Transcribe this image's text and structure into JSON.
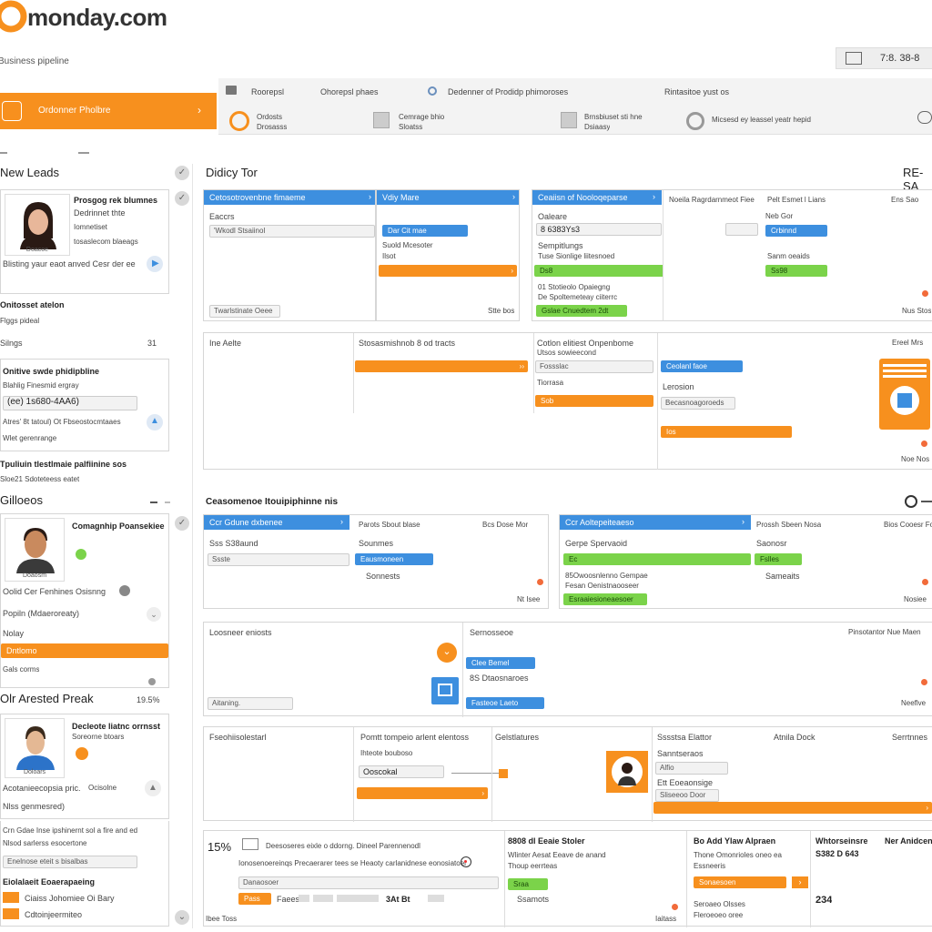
{
  "brand": {
    "name": "monday.com",
    "subtitle": "Business pipeline",
    "accent": "#f7901e",
    "blue": "#3d8fdf",
    "green": "#7bd34a"
  },
  "topbar": {
    "clock": "7:8. 38-8"
  },
  "sidebar_nav": {
    "label": "Ordonner Pholbre"
  },
  "toolbar": {
    "row1": [
      "Roorepsl",
      "Ohorepsl phaes",
      "Dedenner of Prodidp phimoroses",
      "Rintasitoe yust os"
    ],
    "row2": [
      {
        "line1": "Ordosts",
        "line2": "Drosasss"
      },
      {
        "line1": "Cemrage bhio",
        "line2": "Sloatss"
      },
      {
        "line1": "Brnsbiuset sti hne",
        "line2": "Dsiaasy"
      },
      {
        "line1": "Micsesd ey leassel yeatr hepid"
      }
    ]
  },
  "left": {
    "new_leads": {
      "title": "New Leads",
      "card1": {
        "title": "Prosgog rek blumnes",
        "sub1": "Dedrinnet thte",
        "sub2": "Iomnetiset",
        "sub3": "tosaslecom blaeags",
        "avatar_label": "Doacoe",
        "desc": "Blisting yaur eaot anved Cesr der ee"
      },
      "section2": {
        "title": "Onitosset atelon",
        "sub": "Flggs pideal",
        "row_label": "Silngs",
        "row_value": "31"
      },
      "section3": {
        "title": "Onitive swde phidipbline",
        "sub": "Blahlig Finesmid ergray",
        "field": "(ee) 1s680-4AA6)",
        "detail": "Atres' 8t tatoul) Ot Fbseostocmtaaes",
        "detail2": "Wlet gerenrange"
      },
      "section4": {
        "title": "Tpuliuin tlestlmaie palfiinine sos",
        "sub": "Sloe21 Sdoteteess eatet"
      }
    },
    "galleos": {
      "title": "Gilloeos",
      "card": {
        "title": "Comagnhip Poansekiee",
        "avatar_label": "Doaosm",
        "note": "Oolid Cer Fenhines Osisnng",
        "field": "Popiln (Mdaeroreaty)",
        "sub": "Nolay",
        "selected": "Dntlomo",
        "footer": "Gals corms"
      }
    },
    "arrested": {
      "title": "Olr Arested Preak",
      "percent": "19.5%",
      "card": {
        "title": "Decleote liatnc orrnsst",
        "sub": "Soreorne btoars",
        "avatar_label": "Doloars",
        "line1": "Acotanieecopsia pric.",
        "line1b": "Ocisolne",
        "line2": "Nlss genmesred)",
        "note1": "Crn Gdae Inse ipshinernt sol a fire and ed",
        "note2": "Nlsod sarlerss esocertone",
        "field": "Enelnose eteit s bisalbas",
        "footer_title": "Eiolalaeit Eoaerapaeing",
        "items": [
          "Ciaiss Johomiee Oi Bary",
          "Cdtoinjeermiteo"
        ]
      }
    }
  },
  "board": {
    "title": "Didicy Tor",
    "corner": "RE-SA",
    "section2_title": "Ceasomenoe Itouipiphinne nis",
    "group1": {
      "card1": {
        "header": "Cetosotrovenbne fimaeme",
        "label": "Eaccrs",
        "field": "'Wkodl Stsaiinol",
        "footer": "Twarlstinate Oeee",
        "footer_r": "Stte bos"
      },
      "card2": {
        "header": "Vdiy Mare",
        "bar1": "Dar Cit mae",
        "sub1": "Suold Mcesoter",
        "sub2": "Ilsot"
      },
      "card3": {
        "header": "Ceaiisn of Nooloqeparse",
        "label": "Oaleare",
        "field": "8 6383Ys3",
        "sub1": "Sempitlungs",
        "sub2": "Tuse Sionlige liitesnoed",
        "bar": "Ds8",
        "sub3": "01 Stotieolo Opaiegng",
        "sub4": "De Spoltemeteay ciiterrc",
        "green": "Gslae Cnuedtem 2dt"
      },
      "card4": {
        "header": "Noeila Ragrdarnmeot Fiee",
        "col2": "Pelt Esmet l Lians",
        "bar1": "Crbinnd",
        "sub1": "Sanm oeaids",
        "bar2": "Ss98",
        "col3": "Ens Sao",
        "sub_r": "Neb Gor",
        "foot": "Nus Stos"
      }
    },
    "group2": {
      "col1": "Ine Aelte",
      "col2": "Stosasmishnob 8 od tracts",
      "col3_title": "Cotlon elitiest Onpenbome",
      "col3_sub": "Utsos sowieecond",
      "col3_field": "Fossslac",
      "col3_sub2": "Tiorrasa",
      "col3_bar": "Sob",
      "col4_bar": "Ceolanl faoe",
      "col4_sub": "Lerosion",
      "col4_field": "Becasnoagoroeds",
      "col4_bar2": "Ios",
      "col5": "Ereel Mrs",
      "col5_foot": "Noe Nos"
    },
    "group3": {
      "card1": {
        "header": "Ccr Gdune dxbenee",
        "sub": "Sss S38aund",
        "field": "Ssste",
        "col2": "Parots Sbout blase",
        "col2_sub": "Sounmes",
        "col2_bar": "Eausmoneen",
        "col2_sub2": "Sonnests",
        "col3": "Bcs Dose Mor",
        "col3_foot": "Nt Isee"
      },
      "card2": {
        "header": "Ccr Aoltepeiteaeso",
        "sub": "Gerpe Spervaoid",
        "bar": "Ec",
        "line1": "85Owoosnlenno Gempae",
        "line2": "Fesan Oenistnaooseer",
        "green": "Esraaiesioneaesoer",
        "col2": "Prossh Sbeen Nosa",
        "col2_sub": "Saonosr",
        "col2_bar": "Fslles",
        "col2_sub2": "Sameaits",
        "col3": "Bios Cooesr Fo",
        "col3_foot": "Nosiee"
      }
    },
    "group4": {
      "col1": "Loosneer eniosts",
      "col1_field": "Aitaning.",
      "col2": "Sernosseoe",
      "bar1": "Clee Bemel",
      "line": "8S Dtaosnaroes",
      "bar2": "Fasteoe Laeto",
      "col3": "Pinsotantor Nue Maen",
      "col3_foot": "Neeflve"
    },
    "group5": {
      "col1": "Fseohiisolestarl",
      "col2": "Pomtt tompeio arlent elentoss",
      "col2_sub": "Ihteote bouboso",
      "col2_field": "Ooscokal",
      "col3": "Gelstlatures",
      "col4": "Sssstsa Elattor",
      "col4_sub": "Sanntseraos",
      "col4_field": "Alfio",
      "col4_sub2": "Ett Eoeaonsige",
      "col4_sub3": "Sliseeoo Door",
      "col5": "Atnila Dock",
      "col6": "Serrtnnes"
    },
    "group6": {
      "percent": "15%",
      "line1": "Deesoseres eixle o ddorng. Dineel Parennenodl",
      "line2": "Ionosenoereinqs Precaerarer tees se Heaoty carlanidnese eonosiatoer",
      "field": "Danaosoer",
      "bar": "Pass",
      "label": "Faees",
      "tag": "3At Bt",
      "col2": "8808 dl Eeaie Stoler",
      "col2_sub": "Wlinter Aesat Eeave de anand",
      "col2_sub2": "Thoup eerrteas",
      "col2_green": "Sraa",
      "col2_foot": "Ssamots",
      "col3": "Bo Add Ylaw Alpraen",
      "col3_sub": "Thone Omonrioles oneo ea",
      "col3_sub2": "Essneeris",
      "col3_bar": "Sonaesoen",
      "col3_sub3": "Seroaeo Olsses",
      "col3_sub4": "Fleroeoeo oree",
      "col4": "Whtorseinsre",
      "col4_val": "S382 D 643",
      "col4_val2": "234",
      "col5": "Ner Anidcense",
      "footer": "Ibee Toss",
      "footer_r": "Iaitass"
    }
  }
}
